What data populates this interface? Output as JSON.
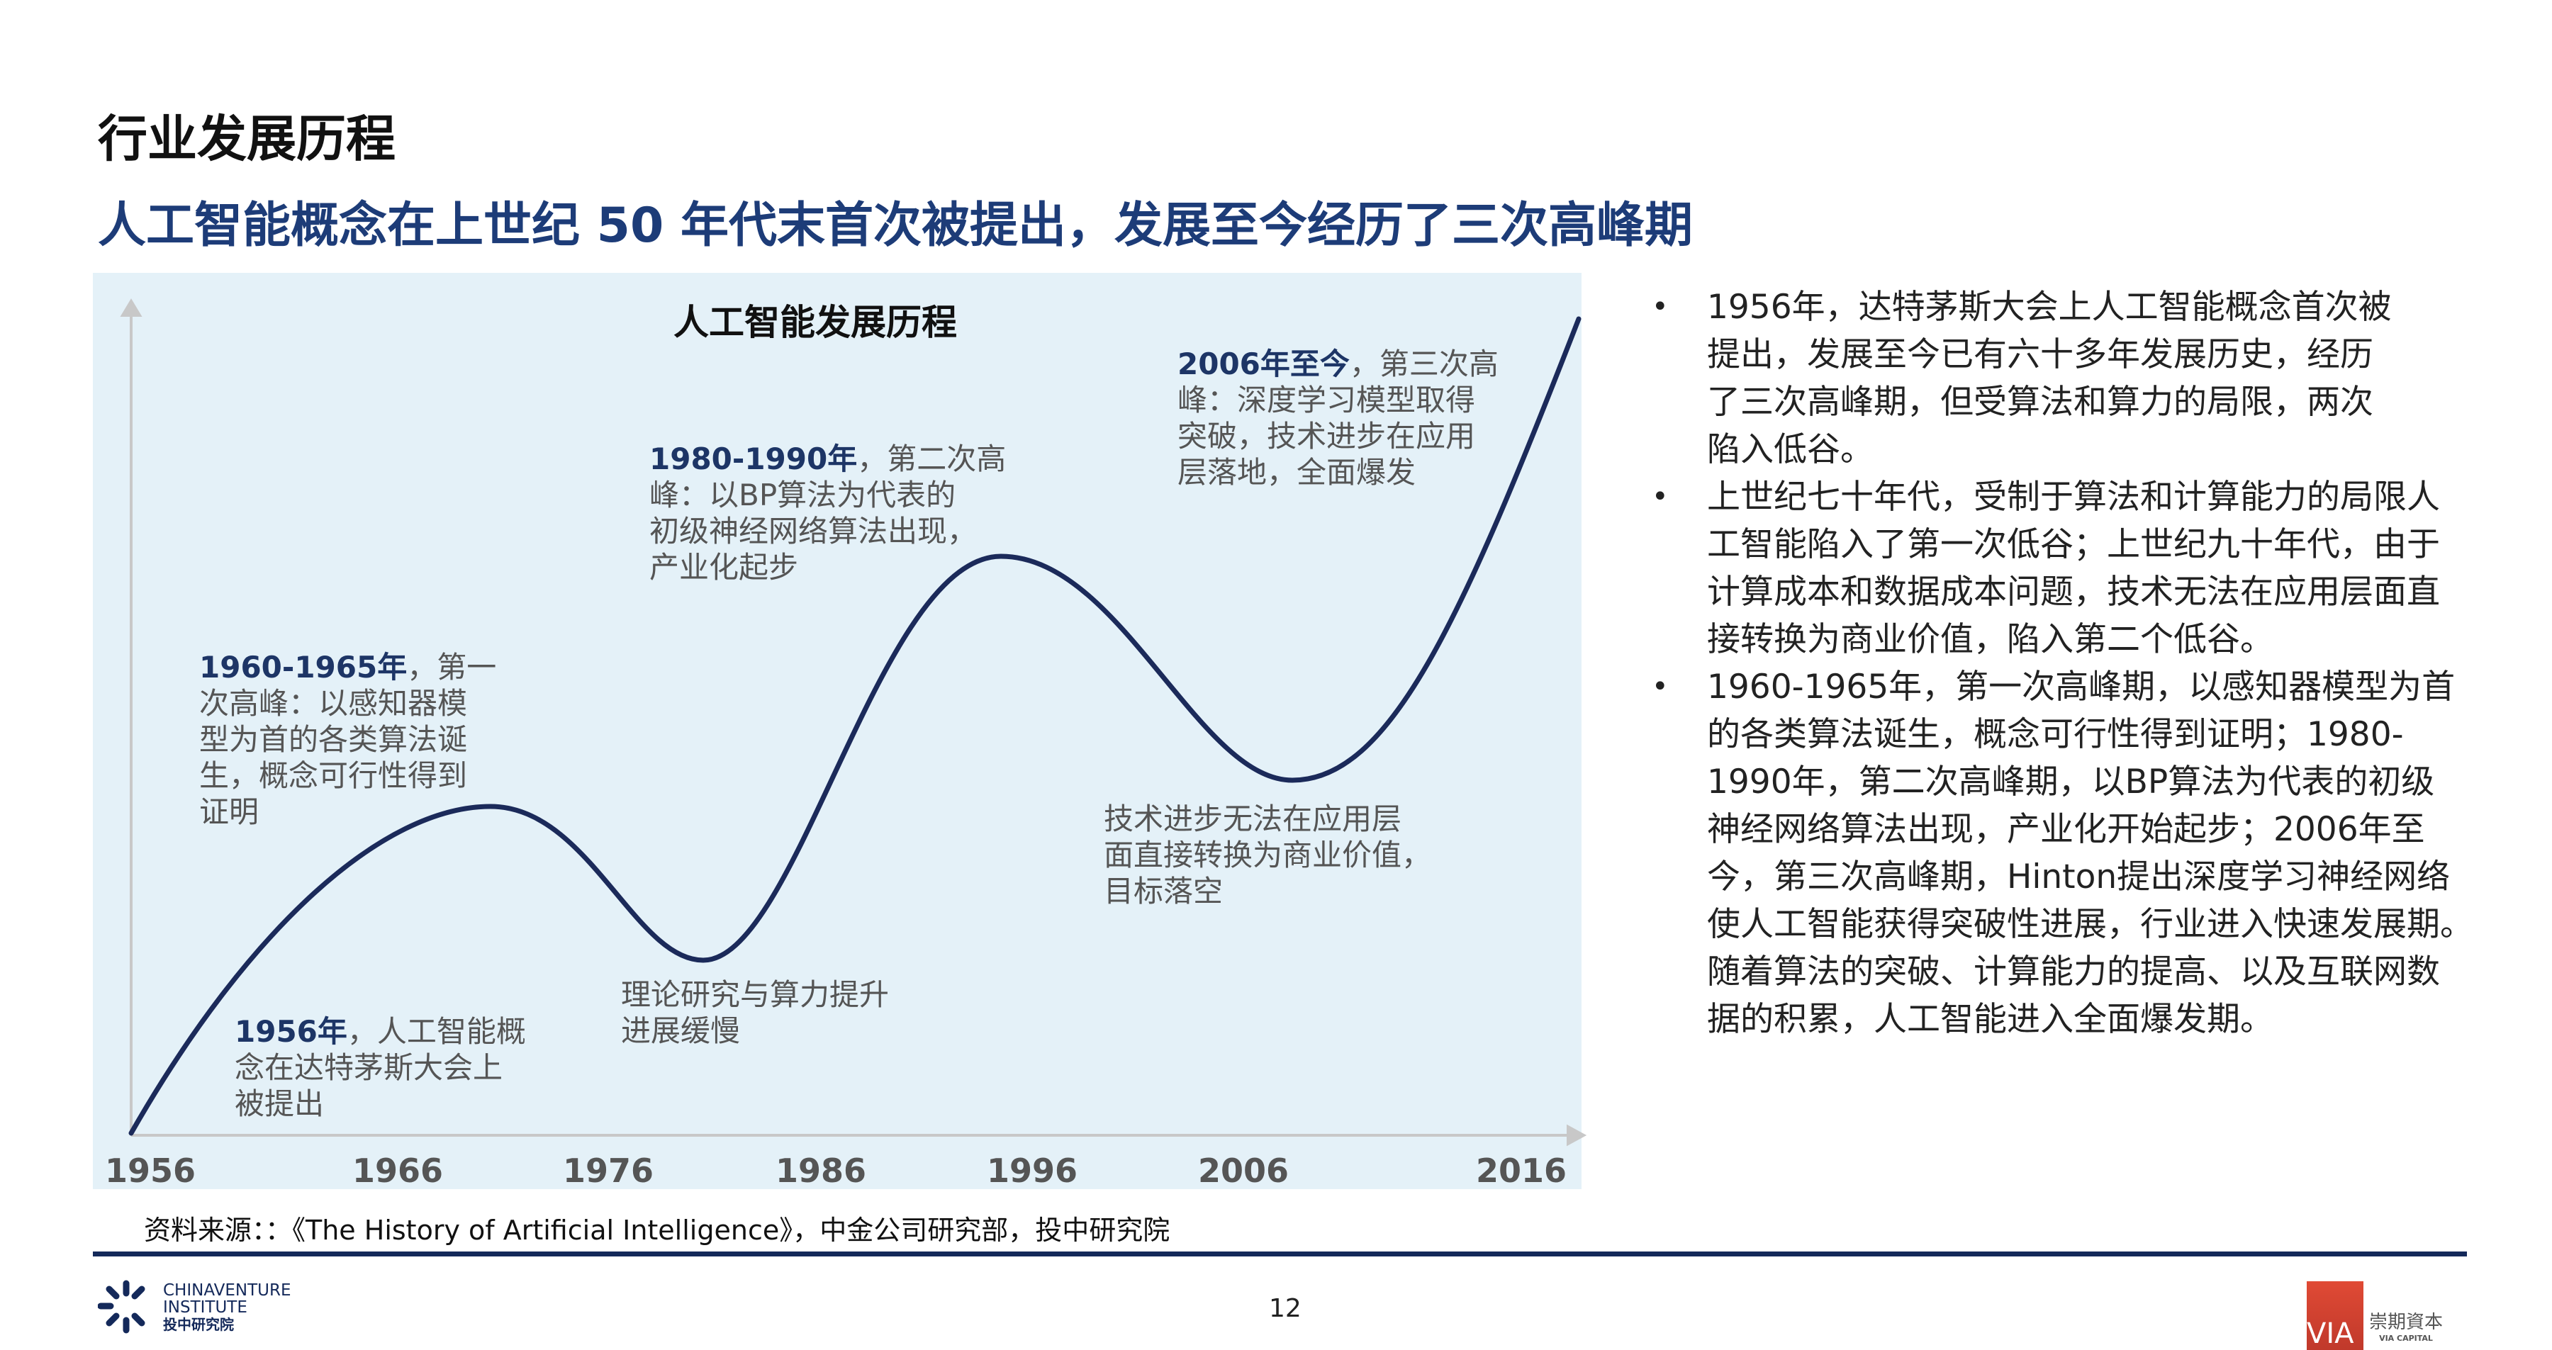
{
  "header": {
    "title": "行业发展历程",
    "subtitle": "人工智能概念在上世纪 50 年代末首次被提出，发展至今经历了三次高峰期"
  },
  "diagram": {
    "title": "人工智能发展历程",
    "x_ticks": [
      "1956",
      "1966",
      "1976",
      "1986",
      "1996",
      "2006",
      "2016"
    ],
    "annotations": {
      "a1956": {
        "highlight": "1956年",
        "first": "，人工智能概",
        "lines": [
          "念在达特茅斯大会上",
          "被提出"
        ]
      },
      "a1960": {
        "highlight": "1960-1965年",
        "first": "，第一",
        "lines": [
          "次高峰：以感知器模",
          "型为首的各类算法诞",
          "生，概念可行性得到",
          "证明"
        ]
      },
      "trough1": {
        "lines": [
          "理论研究与算力提升",
          "进展缓慢"
        ]
      },
      "a1980": {
        "highlight": "1980-1990年",
        "first": "，第二次高",
        "lines": [
          "峰：以BP算法为代表的",
          "初级神经网络算法出现，",
          "产业化起步"
        ]
      },
      "trough2": {
        "lines": [
          "技术进步无法在应用层",
          "面直接转换为商业价值，",
          "目标落空"
        ]
      },
      "a2006": {
        "highlight": "2006年至今",
        "first": "，第三次高",
        "lines": [
          "峰：深度学习模型取得",
          "突破，技术进步在应用",
          "层落地，全面爆发"
        ]
      }
    },
    "curve_color": "#1B2A5A",
    "panel_color": "#E4F1F8"
  },
  "bullets": [
    {
      "lines": [
        "1956年，达特茅斯大会上人工智能概念首次被",
        "提出，发展至今已有六十多年发展历史，经历",
        "了三次高峰期，但受算法和算力的局限，两次",
        "陷入低谷。"
      ]
    },
    {
      "lines": [
        "上世纪七十年代，受制于算法和计算能力的局限人",
        "工智能陷入了第一次低谷；上世纪九十年代，由于",
        "计算成本和数据成本问题，技术无法在应用层面直",
        "接转换为商业价值，陷入第二个低谷。"
      ]
    },
    {
      "lines": [
        "1960-1965年，第一次高峰期，以感知器模型为首",
        "的各类算法诞生，概念可行性得到证明；1980-",
        "1990年，第二次高峰期，以BP算法为代表的初级",
        "神经网络算法出现，产业化开始起步；2006年至",
        "今，第三次高峰期，Hinton提出深度学习神经网络",
        "使人工智能获得突破性进展，行业进入快速发展期。",
        "随着算法的突破、计算能力的提高、以及互联网数",
        "据的积累，人工智能进入全面爆发期。"
      ]
    }
  ],
  "bullet_glyph": "•",
  "source": "资料来源：：《The History of Artificial Intelligence》，中金公司研究部，投中研究院",
  "footer": {
    "page_number": "12",
    "left_logo": {
      "line1": "CHINAVENTURE",
      "line2": "INSTITUTE",
      "line3": "投中研究院"
    },
    "right_logo": {
      "mark": "VIA",
      "cn": "崇期資本",
      "en": "VIA CAPITAL"
    }
  },
  "colors": {
    "title_blue": "#1D3C78",
    "separator": "#14295A",
    "via_red": "#D2402F"
  }
}
